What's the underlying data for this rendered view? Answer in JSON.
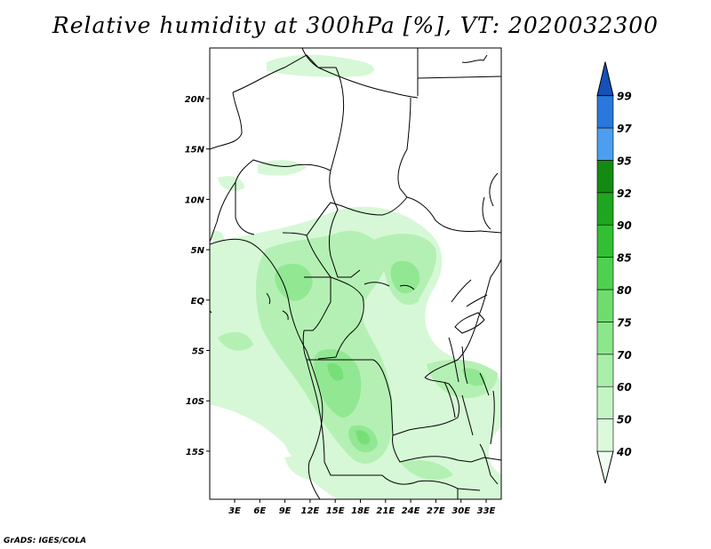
{
  "title": "Relative humidity at 300hPa [%], VT: 2020032300",
  "credit": "GrADS: IGES/COLA",
  "map": {
    "lon_ticks": [
      "3E",
      "6E",
      "9E",
      "12E",
      "15E",
      "18E",
      "21E",
      "24E",
      "27E",
      "30E",
      "33E"
    ],
    "lat_ticks": [
      "20N",
      "15N",
      "10N",
      "5N",
      "EQ",
      "5S",
      "10S",
      "15S"
    ]
  },
  "colorbar": {
    "levels": [
      "40",
      "50",
      "60",
      "70",
      "75",
      "80",
      "85",
      "90",
      "92",
      "95",
      "97",
      "99"
    ],
    "colors": [
      "#f0fdf0",
      "#dcf9dc",
      "#c4f4c4",
      "#a9eea9",
      "#8ce68c",
      "#6edd6e",
      "#4fd14f",
      "#33bf33",
      "#1fa51f",
      "#138b13",
      "#4c9ef0",
      "#2a78dc",
      "#1552b8"
    ]
  }
}
